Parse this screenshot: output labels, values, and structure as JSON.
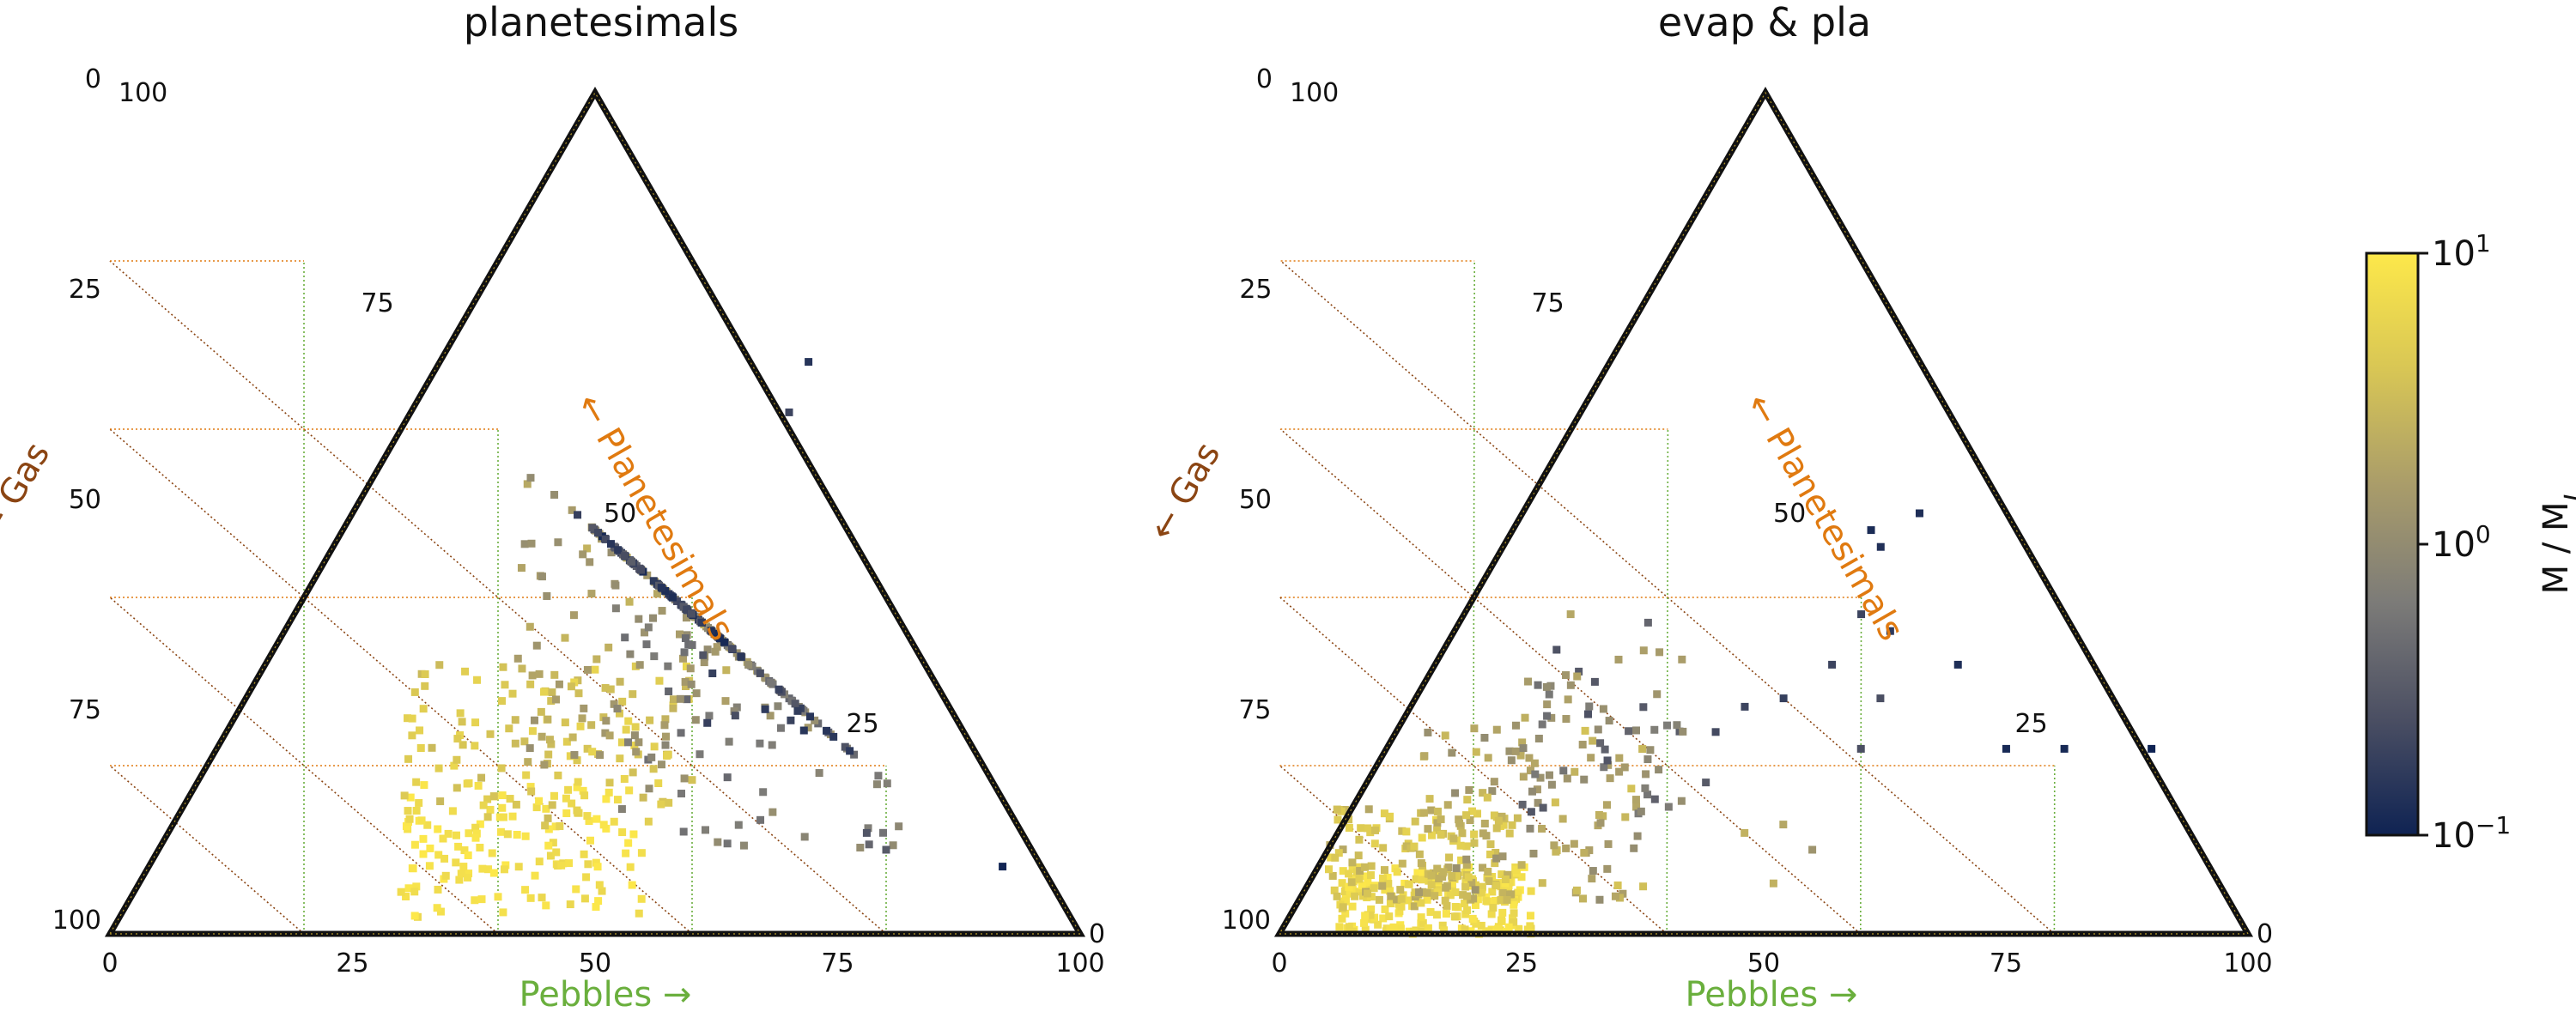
{
  "colors": {
    "frame": "#111111",
    "gas": "#8B4513",
    "planetesimals": "#E07A10",
    "pebbles": "#6AAF3D",
    "cmap": [
      "#0f2353",
      "#4b4f63",
      "#7c7b78",
      "#a99c6a",
      "#d8c655",
      "#fde84a"
    ]
  },
  "chart_data": [
    {
      "type": "scatter",
      "subtype": "ternary",
      "title": "planetesimals",
      "axis_labels": {
        "bottom": "Pebbles →",
        "left": "← Gas",
        "right": "← Planetesimals"
      },
      "ticks": [
        "0",
        "25",
        "50",
        "75",
        "100"
      ],
      "grid": true,
      "seed": 11,
      "clusters": [
        {
          "n": 140,
          "pebbles": [
            30,
            55
          ],
          "planetesimals": [
            2,
            18
          ],
          "mass": [
            0.8,
            1.0
          ]
        },
        {
          "n": 120,
          "pebbles": [
            30,
            60
          ],
          "planetesimals": [
            12,
            32
          ],
          "mass": [
            0.45,
            0.8
          ]
        },
        {
          "n": 130,
          "pebbles": [
            42,
            72
          ],
          "planetesimals": [
            20,
            55
          ],
          "mass": [
            0.0,
            0.45
          ]
        },
        {
          "n": 110,
          "pebbles": [
            52,
            82
          ],
          "planetesimals": [
            10,
            45
          ],
          "mass": [
            -0.4,
            0.1
          ]
        },
        {
          "n": 90,
          "pebbles": [
            60,
            88
          ],
          "planetesimals": [
            22,
            68
          ],
          "mass": [
            -0.95,
            -0.45
          ]
        }
      ],
      "points": [
        {
          "pebbles": 92,
          "planetesimals": 8,
          "mass": -0.98
        },
        {
          "pebbles": 80,
          "planetesimals": 10,
          "mass": -0.5
        },
        {
          "pebbles": 78,
          "planetesimals": 12,
          "mass": -0.55
        },
        {
          "pebbles": 70,
          "planetesimals": 62,
          "mass": -0.7
        },
        {
          "pebbles": 72,
          "planetesimals": 68,
          "mass": -0.85
        }
      ]
    },
    {
      "type": "scatter",
      "subtype": "ternary",
      "title": "evap & pla",
      "axis_labels": {
        "bottom": "Pebbles →",
        "left": "← Gas",
        "right": "← Planetesimals"
      },
      "ticks": [
        "0",
        "25",
        "50",
        "75",
        "100"
      ],
      "grid": true,
      "seed": 23,
      "clusters": [
        {
          "n": 220,
          "pebbles": [
            6,
            26
          ],
          "planetesimals": [
            0,
            8
          ],
          "mass": [
            0.75,
            1.0
          ]
        },
        {
          "n": 150,
          "pebbles": [
            5,
            24
          ],
          "planetesimals": [
            3,
            15
          ],
          "mass": [
            0.3,
            0.8
          ]
        },
        {
          "n": 110,
          "pebbles": [
            14,
            38
          ],
          "planetesimals": [
            4,
            26
          ],
          "mass": [
            0.0,
            0.6
          ]
        },
        {
          "n": 60,
          "pebbles": [
            25,
            42
          ],
          "planetesimals": [
            12,
            34
          ],
          "mass": [
            -0.6,
            0.3
          ]
        }
      ],
      "points": [
        {
          "pebbles": 66,
          "planetesimals": 50,
          "mass": -0.9
        },
        {
          "pebbles": 62,
          "planetesimals": 46,
          "mass": -0.88
        },
        {
          "pebbles": 61,
          "planetesimals": 48,
          "mass": -0.92
        },
        {
          "pebbles": 60,
          "planetesimals": 38,
          "mass": -0.7
        },
        {
          "pebbles": 57,
          "planetesimals": 32,
          "mass": -0.7
        },
        {
          "pebbles": 62,
          "planetesimals": 28,
          "mass": -0.6
        },
        {
          "pebbles": 70,
          "planetesimals": 32,
          "mass": -0.9
        },
        {
          "pebbles": 63,
          "planetesimals": 36,
          "mass": -0.8
        },
        {
          "pebbles": 75,
          "planetesimals": 22,
          "mass": -0.95
        },
        {
          "pebbles": 81,
          "planetesimals": 22,
          "mass": -0.95
        },
        {
          "pebbles": 90,
          "planetesimals": 22,
          "mass": -1.0
        },
        {
          "pebbles": 60,
          "planetesimals": 22,
          "mass": -0.6
        },
        {
          "pebbles": 52,
          "planetesimals": 28,
          "mass": -0.75
        },
        {
          "pebbles": 48,
          "planetesimals": 27,
          "mass": -0.7
        },
        {
          "pebbles": 45,
          "planetesimals": 24,
          "mass": -0.65
        },
        {
          "pebbles": 44,
          "planetesimals": 18,
          "mass": -0.5
        },
        {
          "pebbles": 48,
          "planetesimals": 12,
          "mass": 0.4
        },
        {
          "pebbles": 52,
          "planetesimals": 13,
          "mass": 0.3
        },
        {
          "pebbles": 51,
          "planetesimals": 6,
          "mass": 0.4
        },
        {
          "pebbles": 55,
          "planetesimals": 10,
          "mass": 0.1
        },
        {
          "pebbles": 30,
          "planetesimals": 38,
          "mass": 0.3
        },
        {
          "pebbles": 38,
          "planetesimals": 37,
          "mass": -0.4
        }
      ]
    }
  ],
  "colorbar": {
    "label": "M / M_J",
    "scale": "log",
    "range": [
      0.1,
      10
    ],
    "ticks": [
      {
        "base": "10",
        "exp": "1",
        "value": 1
      },
      {
        "base": "10",
        "exp": "0",
        "value": 0
      },
      {
        "base": "10",
        "exp": "−1",
        "value": -1
      }
    ]
  }
}
